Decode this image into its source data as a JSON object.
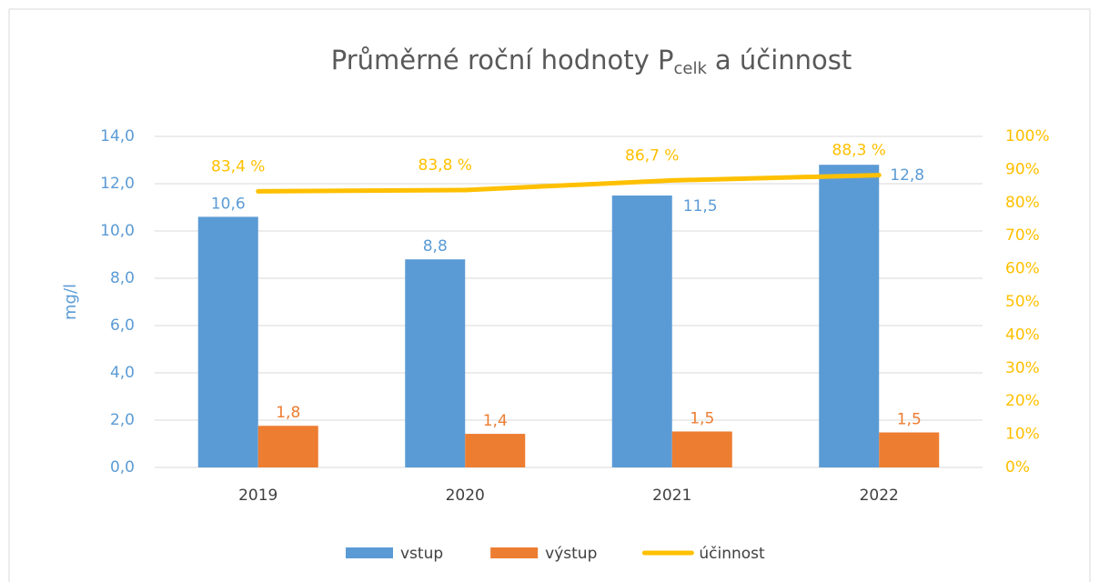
{
  "chart_data": {
    "type": "bar",
    "title_parts": [
      "Průměrné roční hodnoty P",
      "celk",
      "a účinnost"
    ],
    "y_axis_label": "mg/l",
    "categories": [
      "2019",
      "2020",
      "2021",
      "2022"
    ],
    "series": [
      {
        "name": "vstup",
        "color": "#5b9bd5",
        "values": [
          10.6,
          8.8,
          11.5,
          12.8
        ],
        "value_labels": [
          "10,6",
          "8,8",
          "11,5",
          "12,8"
        ]
      },
      {
        "name": "výstup",
        "color": "#ed7d31",
        "values": [
          1.76,
          1.42,
          1.52,
          1.48
        ],
        "value_labels": [
          "1,8",
          "1,4",
          "1,5",
          "1,5"
        ]
      },
      {
        "name": "účinnost",
        "type": "line",
        "axis": "y2",
        "color": "#ffc000",
        "values": [
          83.4,
          83.8,
          86.7,
          88.3
        ],
        "value_labels": [
          "83,4 %",
          "83,8 %",
          "86,7 %",
          "88,3 %"
        ]
      }
    ],
    "ylim": [
      0,
      14
    ],
    "yticks": [
      {
        "value": 0,
        "label": "0,0"
      },
      {
        "value": 2,
        "label": "2,0"
      },
      {
        "value": 4,
        "label": "4,0"
      },
      {
        "value": 6,
        "label": "6,0"
      },
      {
        "value": 8,
        "label": "8,0"
      },
      {
        "value": 10,
        "label": "10,0"
      },
      {
        "value": 12,
        "label": "12,0"
      },
      {
        "value": 14,
        "label": "14,0"
      }
    ],
    "y2lim": [
      0,
      100
    ],
    "y2ticks": [
      {
        "value": 0,
        "label": "0%"
      },
      {
        "value": 10,
        "label": "10%"
      },
      {
        "value": 20,
        "label": "20%"
      },
      {
        "value": 30,
        "label": "30%"
      },
      {
        "value": 40,
        "label": "40%"
      },
      {
        "value": 50,
        "label": "50%"
      },
      {
        "value": 60,
        "label": "60%"
      },
      {
        "value": 70,
        "label": "70%"
      },
      {
        "value": 80,
        "label": "80%"
      },
      {
        "value": 90,
        "label": "90%"
      },
      {
        "value": 100,
        "label": "100%"
      }
    ],
    "grid": true,
    "legend": "bottom"
  }
}
